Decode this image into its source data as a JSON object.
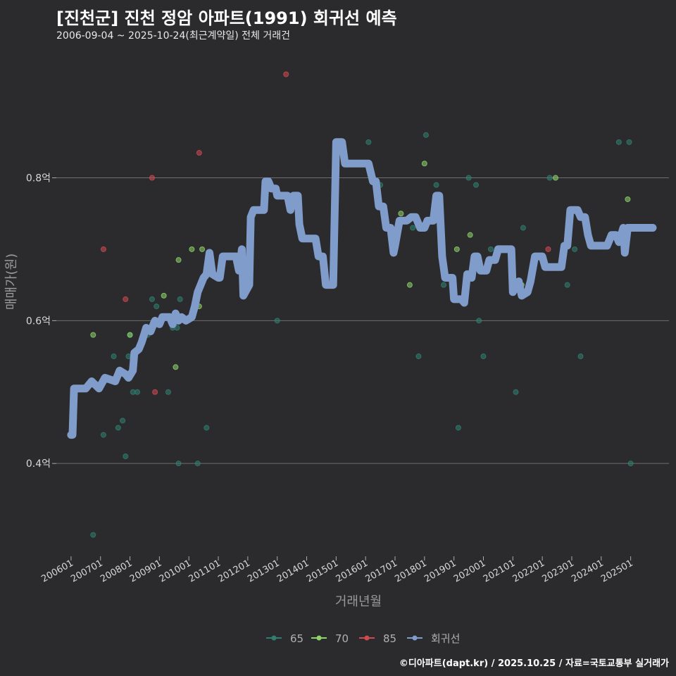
{
  "title": "[진천군] 진천 정암 아파트(1991) 회귀선 예측",
  "subtitle": "2006-09-04 ~ 2025-10-24(최근계약일) 전체 거래건",
  "footer": "©디아파트(dapt.kr) / 2025.10.25 / 자료=국토교통부 실거래가",
  "colors": {
    "background": "#2b2b2d",
    "grid": "#6e6e6e",
    "s65": "#2f7f6f",
    "s70": "#8fd46a",
    "s85": "#d04a52",
    "regression": "#7f9ccb"
  },
  "chart_data": {
    "type": "scatter",
    "xlabel": "거래년월",
    "ylabel": "매매가(원)",
    "xlim": [
      2005.5,
      2026.3
    ],
    "ylim": [
      0.27,
      0.98
    ],
    "yticks": [
      {
        "value": 0.4,
        "label": "0.4억"
      },
      {
        "value": 0.6,
        "label": "0.6억"
      },
      {
        "value": 0.8,
        "label": "0.8억"
      }
    ],
    "xticks": [
      {
        "value": 2006,
        "label": "200601"
      },
      {
        "value": 2007,
        "label": "200701"
      },
      {
        "value": 2008,
        "label": "200801"
      },
      {
        "value": 2009,
        "label": "200901"
      },
      {
        "value": 2010,
        "label": "201001"
      },
      {
        "value": 2011,
        "label": "201101"
      },
      {
        "value": 2012,
        "label": "201201"
      },
      {
        "value": 2013,
        "label": "201301"
      },
      {
        "value": 2014,
        "label": "201401"
      },
      {
        "value": 2015,
        "label": "201501"
      },
      {
        "value": 2016,
        "label": "201601"
      },
      {
        "value": 2017,
        "label": "201701"
      },
      {
        "value": 2018,
        "label": "201801"
      },
      {
        "value": 2019,
        "label": "201901"
      },
      {
        "value": 2020,
        "label": "202001"
      },
      {
        "value": 2021,
        "label": "202101"
      },
      {
        "value": 2022,
        "label": "202201"
      },
      {
        "value": 2023,
        "label": "202301"
      },
      {
        "value": 2024,
        "label": "202401"
      },
      {
        "value": 2025,
        "label": "202501"
      }
    ],
    "legend": [
      {
        "name": "65",
        "key": "s65"
      },
      {
        "name": "70",
        "key": "s70"
      },
      {
        "name": "85",
        "key": "s85"
      },
      {
        "name": "회귀선",
        "key": "regression"
      }
    ],
    "series": [
      {
        "name": "65",
        "key": "s65",
        "points": [
          [
            2006.75,
            0.3
          ],
          [
            2007.1,
            0.44
          ],
          [
            2007.45,
            0.55
          ],
          [
            2007.6,
            0.45
          ],
          [
            2007.75,
            0.46
          ],
          [
            2007.85,
            0.41
          ],
          [
            2007.95,
            0.55
          ],
          [
            2008.0,
            0.58
          ],
          [
            2008.1,
            0.5
          ],
          [
            2008.25,
            0.5
          ],
          [
            2008.6,
            0.58
          ],
          [
            2008.75,
            0.63
          ],
          [
            2008.9,
            0.62
          ],
          [
            2009.3,
            0.5
          ],
          [
            2009.45,
            0.59
          ],
          [
            2009.6,
            0.59
          ],
          [
            2009.65,
            0.4
          ],
          [
            2009.7,
            0.63
          ],
          [
            2010.3,
            0.4
          ],
          [
            2010.6,
            0.45
          ],
          [
            2013.0,
            0.6
          ],
          [
            2014.75,
            0.65
          ],
          [
            2016.1,
            0.85
          ],
          [
            2016.5,
            0.79
          ],
          [
            2017.6,
            0.73
          ],
          [
            2017.8,
            0.55
          ],
          [
            2018.05,
            0.86
          ],
          [
            2018.4,
            0.79
          ],
          [
            2018.65,
            0.65
          ],
          [
            2019.15,
            0.45
          ],
          [
            2019.5,
            0.8
          ],
          [
            2019.75,
            0.79
          ],
          [
            2019.85,
            0.6
          ],
          [
            2020.0,
            0.55
          ],
          [
            2020.25,
            0.7
          ],
          [
            2021.1,
            0.5
          ],
          [
            2021.35,
            0.73
          ],
          [
            2022.25,
            0.8
          ],
          [
            2022.85,
            0.65
          ],
          [
            2023.1,
            0.7
          ],
          [
            2023.2,
            0.75
          ],
          [
            2023.3,
            0.55
          ],
          [
            2024.6,
            0.85
          ],
          [
            2024.95,
            0.85
          ],
          [
            2025.0,
            0.4
          ]
        ]
      },
      {
        "name": "70",
        "key": "s70",
        "points": [
          [
            2006.75,
            0.58
          ],
          [
            2008.0,
            0.58
          ],
          [
            2009.15,
            0.635
          ],
          [
            2009.55,
            0.535
          ],
          [
            2009.65,
            0.685
          ],
          [
            2010.1,
            0.7
          ],
          [
            2010.35,
            0.62
          ],
          [
            2010.45,
            0.7
          ],
          [
            2017.2,
            0.75
          ],
          [
            2017.5,
            0.65
          ],
          [
            2018.0,
            0.82
          ],
          [
            2019.1,
            0.7
          ],
          [
            2019.55,
            0.72
          ],
          [
            2021.3,
            0.65
          ],
          [
            2022.45,
            0.8
          ],
          [
            2024.9,
            0.77
          ]
        ]
      },
      {
        "name": "85",
        "key": "s85",
        "points": [
          [
            2007.1,
            0.7
          ],
          [
            2007.85,
            0.63
          ],
          [
            2008.75,
            0.8
          ],
          [
            2008.85,
            0.5
          ],
          [
            2010.35,
            0.835
          ],
          [
            2013.3,
            0.945
          ],
          [
            2022.2,
            0.7
          ]
        ]
      }
    ],
    "regression": {
      "name": "회귀선",
      "points": [
        [
          2006.0,
          0.44
        ],
        [
          2006.05,
          0.44
        ],
        [
          2006.1,
          0.505
        ],
        [
          2006.5,
          0.505
        ],
        [
          2006.7,
          0.515
        ],
        [
          2006.95,
          0.505
        ],
        [
          2007.15,
          0.52
        ],
        [
          2007.5,
          0.515
        ],
        [
          2007.65,
          0.53
        ],
        [
          2007.85,
          0.525
        ],
        [
          2007.95,
          0.52
        ],
        [
          2008.1,
          0.53
        ],
        [
          2008.15,
          0.555
        ],
        [
          2008.3,
          0.56
        ],
        [
          2008.4,
          0.57
        ],
        [
          2008.55,
          0.59
        ],
        [
          2008.7,
          0.585
        ],
        [
          2008.85,
          0.6
        ],
        [
          2009.0,
          0.595
        ],
        [
          2009.1,
          0.605
        ],
        [
          2009.35,
          0.605
        ],
        [
          2009.45,
          0.595
        ],
        [
          2009.55,
          0.61
        ],
        [
          2009.65,
          0.6
        ],
        [
          2009.75,
          0.605
        ],
        [
          2009.9,
          0.6
        ],
        [
          2010.1,
          0.605
        ],
        [
          2010.2,
          0.62
        ],
        [
          2010.3,
          0.64
        ],
        [
          2010.5,
          0.66
        ],
        [
          2010.6,
          0.665
        ],
        [
          2010.7,
          0.695
        ],
        [
          2010.8,
          0.665
        ],
        [
          2011.0,
          0.66
        ],
        [
          2011.05,
          0.66
        ],
        [
          2011.15,
          0.69
        ],
        [
          2011.6,
          0.69
        ],
        [
          2011.7,
          0.67
        ],
        [
          2011.8,
          0.7
        ],
        [
          2011.85,
          0.635
        ],
        [
          2012.05,
          0.65
        ],
        [
          2012.1,
          0.745
        ],
        [
          2012.2,
          0.755
        ],
        [
          2012.55,
          0.755
        ],
        [
          2012.6,
          0.795
        ],
        [
          2012.7,
          0.795
        ],
        [
          2012.8,
          0.785
        ],
        [
          2012.95,
          0.785
        ],
        [
          2013.0,
          0.775
        ],
        [
          2013.35,
          0.775
        ],
        [
          2013.45,
          0.755
        ],
        [
          2013.55,
          0.775
        ],
        [
          2013.7,
          0.775
        ],
        [
          2013.75,
          0.735
        ],
        [
          2013.85,
          0.715
        ],
        [
          2014.3,
          0.715
        ],
        [
          2014.4,
          0.69
        ],
        [
          2014.55,
          0.69
        ],
        [
          2014.65,
          0.65
        ],
        [
          2014.9,
          0.65
        ],
        [
          2015.0,
          0.85
        ],
        [
          2015.2,
          0.85
        ],
        [
          2015.3,
          0.82
        ],
        [
          2016.1,
          0.82
        ],
        [
          2016.25,
          0.795
        ],
        [
          2016.35,
          0.795
        ],
        [
          2016.45,
          0.76
        ],
        [
          2016.6,
          0.76
        ],
        [
          2016.7,
          0.73
        ],
        [
          2016.85,
          0.73
        ],
        [
          2016.95,
          0.695
        ],
        [
          2017.0,
          0.705
        ],
        [
          2017.15,
          0.74
        ],
        [
          2017.4,
          0.74
        ],
        [
          2017.55,
          0.745
        ],
        [
          2017.7,
          0.745
        ],
        [
          2017.85,
          0.73
        ],
        [
          2018.0,
          0.73
        ],
        [
          2018.1,
          0.74
        ],
        [
          2018.3,
          0.74
        ],
        [
          2018.4,
          0.775
        ],
        [
          2018.5,
          0.775
        ],
        [
          2018.6,
          0.69
        ],
        [
          2018.7,
          0.66
        ],
        [
          2018.95,
          0.66
        ],
        [
          2019.0,
          0.63
        ],
        [
          2019.25,
          0.63
        ],
        [
          2019.35,
          0.625
        ],
        [
          2019.45,
          0.665
        ],
        [
          2019.6,
          0.66
        ],
        [
          2019.7,
          0.69
        ],
        [
          2019.8,
          0.69
        ],
        [
          2019.9,
          0.67
        ],
        [
          2020.1,
          0.67
        ],
        [
          2020.2,
          0.685
        ],
        [
          2020.4,
          0.685
        ],
        [
          2020.5,
          0.7
        ],
        [
          2020.95,
          0.7
        ],
        [
          2021.0,
          0.64
        ],
        [
          2021.2,
          0.655
        ],
        [
          2021.3,
          0.635
        ],
        [
          2021.5,
          0.64
        ],
        [
          2021.6,
          0.655
        ],
        [
          2021.75,
          0.69
        ],
        [
          2022.0,
          0.69
        ],
        [
          2022.1,
          0.675
        ],
        [
          2022.65,
          0.675
        ],
        [
          2022.75,
          0.705
        ],
        [
          2022.85,
          0.705
        ],
        [
          2022.95,
          0.755
        ],
        [
          2023.2,
          0.755
        ],
        [
          2023.3,
          0.745
        ],
        [
          2023.45,
          0.745
        ],
        [
          2023.55,
          0.72
        ],
        [
          2023.65,
          0.705
        ],
        [
          2024.2,
          0.705
        ],
        [
          2024.35,
          0.72
        ],
        [
          2024.5,
          0.72
        ],
        [
          2024.6,
          0.71
        ],
        [
          2024.75,
          0.73
        ],
        [
          2024.8,
          0.695
        ],
        [
          2024.9,
          0.73
        ],
        [
          2025.75,
          0.73
        ]
      ]
    }
  }
}
